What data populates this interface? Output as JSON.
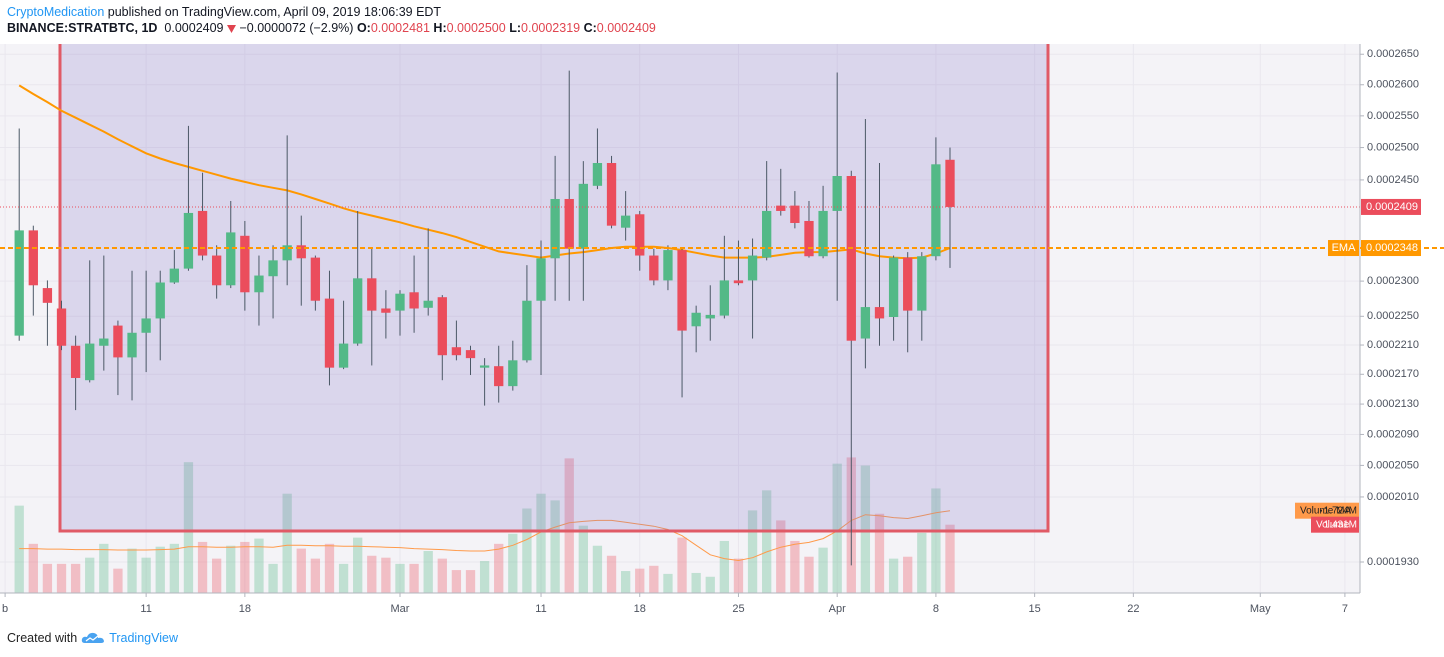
{
  "header": {
    "author": "CryptoMedication",
    "published": "published on TradingView.com, April 09, 2019 18:06:39 EDT",
    "symbol": "BINANCE:STRATBTC, 1D",
    "last": "0.0002409",
    "change": "−0.0000072 (−2.9%)",
    "ohlc": [
      {
        "key": "O:",
        "value": "0.0002481"
      },
      {
        "key": "H:",
        "value": "0.0002500"
      },
      {
        "key": "L:",
        "value": "0.0002319"
      },
      {
        "key": "C:",
        "value": "0.0002409"
      }
    ]
  },
  "footer": {
    "created": "Created with",
    "brand": "TradingView"
  },
  "chart_data": {
    "type": "candlestick",
    "log": true,
    "grid": true,
    "up_color": "#53b987",
    "down_color": "#eb4d5c",
    "x": [
      "2019-02-02",
      "2019-02-03",
      "2019-02-04",
      "2019-02-05",
      "2019-02-06",
      "2019-02-07",
      "2019-02-08",
      "2019-02-09",
      "2019-02-10",
      "2019-02-11",
      "2019-02-12",
      "2019-02-13",
      "2019-02-14",
      "2019-02-15",
      "2019-02-16",
      "2019-02-17",
      "2019-02-18",
      "2019-02-19",
      "2019-02-20",
      "2019-02-21",
      "2019-02-22",
      "2019-02-23",
      "2019-02-24",
      "2019-02-25",
      "2019-02-26",
      "2019-02-27",
      "2019-02-28",
      "2019-03-01",
      "2019-03-02",
      "2019-03-03",
      "2019-03-04",
      "2019-03-05",
      "2019-03-06",
      "2019-03-07",
      "2019-03-08",
      "2019-03-09",
      "2019-03-10",
      "2019-03-11",
      "2019-03-12",
      "2019-03-13",
      "2019-03-14",
      "2019-03-15",
      "2019-03-16",
      "2019-03-17",
      "2019-03-18",
      "2019-03-19",
      "2019-03-20",
      "2019-03-21",
      "2019-03-22",
      "2019-03-23",
      "2019-03-24",
      "2019-03-25",
      "2019-03-26",
      "2019-03-27",
      "2019-03-28",
      "2019-03-29",
      "2019-03-30",
      "2019-03-31",
      "2019-04-01",
      "2019-04-02",
      "2019-04-03",
      "2019-04-04",
      "2019-04-05",
      "2019-04-06",
      "2019-04-07",
      "2019-04-08",
      "2019-04-09"
    ],
    "open": [
      0.0002223,
      0.0002374,
      0.000229,
      0.0002261,
      0.0002209,
      0.0002162,
      0.0002209,
      0.0002237,
      0.0002193,
      0.0002227,
      0.0002247,
      0.0002298,
      0.0002318,
      0.0002403,
      0.0002337,
      0.0002294,
      0.0002366,
      0.0002284,
      0.0002307,
      0.000233,
      0.0002352,
      0.0002334,
      0.0002275,
      0.0002179,
      0.0002212,
      0.0002304,
      0.0002261,
      0.0002258,
      0.0002284,
      0.0002262,
      0.0002277,
      0.0002207,
      0.0002203,
      0.0002179,
      0.0002181,
      0.0002154,
      0.0002189,
      0.0002272,
      0.0002333,
      0.0002421,
      0.0002347,
      0.0002441,
      0.0002476,
      0.0002378,
      0.0002398,
      0.0002337,
      0.0002301,
      0.0002345,
      0.0002236,
      0.0002247,
      0.0002251,
      0.0002301,
      0.0002301,
      0.0002334,
      0.0002411,
      0.0002411,
      0.0002388,
      0.0002336,
      0.0002403,
      0.0002456,
      0.0002219,
      0.0002263,
      0.0002249,
      0.0002334,
      0.0002258,
      0.0002336,
      0.0002481
    ],
    "high": [
      0.000253,
      0.0002381,
      0.0002301,
      0.0002272,
      0.0002223,
      0.000233,
      0.0002337,
      0.0002244,
      0.0002315,
      0.0002315,
      0.0002315,
      0.0002345,
      0.0002534,
      0.0002461,
      0.0002352,
      0.0002418,
      0.0002388,
      0.0002337,
      0.0002352,
      0.0002519,
      0.0002396,
      0.0002337,
      0.0002315,
      0.0002272,
      0.0002403,
      0.0002347,
      0.0002287,
      0.0002287,
      0.0002337,
      0.0002377,
      0.000228,
      0.0002244,
      0.0002209,
      0.0002192,
      0.0002209,
      0.0002216,
      0.0002323,
      0.0002359,
      0.0002487,
      0.0002623,
      0.0002479,
      0.000253,
      0.0002487,
      0.0002433,
      0.0002403,
      0.0002347,
      0.0002352,
      0.0002347,
      0.0002265,
      0.0002294,
      0.0002366,
      0.0002359,
      0.0002362,
      0.0002479,
      0.0002467,
      0.0002433,
      0.0002418,
      0.0002441,
      0.000262,
      0.0002464,
      0.0002545,
      0.0002476,
      0.0002337,
      0.0002342,
      0.0002342,
      0.0002516,
      0.00025
    ],
    "low": [
      0.0002216,
      0.0002251,
      0.0002209,
      0.0002203,
      0.0002122,
      0.0002159,
      0.0002175,
      0.0002142,
      0.0002135,
      0.0002173,
      0.0002189,
      0.0002296,
      0.0002315,
      0.000233,
      0.0002275,
      0.000229,
      0.0002258,
      0.0002237,
      0.0002247,
      0.0002294,
      0.0002265,
      0.0002258,
      0.0002155,
      0.0002177,
      0.0002209,
      0.0002182,
      0.0002219,
      0.0002223,
      0.0002227,
      0.0002251,
      0.0002162,
      0.0002189,
      0.0002169,
      0.0002128,
      0.0002132,
      0.0002148,
      0.0002186,
      0.0002169,
      0.0002272,
      0.0002272,
      0.0002272,
      0.0002436,
      0.0002377,
      0.0002359,
      0.0002315,
      0.0002294,
      0.0002287,
      0.0002139,
      0.00022,
      0.0002216,
      0.0002247,
      0.0002294,
      0.0002219,
      0.000233,
      0.0002396,
      0.0002377,
      0.0002334,
      0.0002333,
      0.0002272,
      0.0001926,
      0.0002178,
      0.0002209,
      0.0002216,
      0.00022,
      0.0002216,
      0.000233,
      0.0002319
    ],
    "close": [
      0.0002374,
      0.0002294,
      0.0002269,
      0.0002209,
      0.0002165,
      0.0002212,
      0.0002219,
      0.0002193,
      0.0002227,
      0.0002247,
      0.0002298,
      0.0002318,
      0.00024,
      0.0002337,
      0.0002294,
      0.0002371,
      0.0002284,
      0.0002308,
      0.000233,
      0.0002352,
      0.0002333,
      0.0002272,
      0.0002179,
      0.0002212,
      0.0002304,
      0.0002258,
      0.0002255,
      0.0002282,
      0.0002261,
      0.0002272,
      0.0002196,
      0.0002196,
      0.0002192,
      0.0002182,
      0.0002154,
      0.0002189,
      0.0002272,
      0.0002333,
      0.0002421,
      0.0002347,
      0.0002444,
      0.0002476,
      0.0002381,
      0.0002396,
      0.0002337,
      0.0002301,
      0.0002345,
      0.000223,
      0.0002255,
      0.0002252,
      0.0002301,
      0.0002297,
      0.0002337,
      0.0002403,
      0.0002403,
      0.0002385,
      0.0002336,
      0.0002403,
      0.0002456,
      0.0002216,
      0.0002263,
      0.0002247,
      0.0002334,
      0.0002258,
      0.0002336,
      0.0002474,
      0.0002409
    ],
    "volume": {
      "name": "Volume",
      "values": [
        1.83,
        1.03,
        0.61,
        0.61,
        0.61,
        0.74,
        1.03,
        0.51,
        0.93,
        0.74,
        0.97,
        1.03,
        2.74,
        1.07,
        0.72,
        0.99,
        1.07,
        1.14,
        0.61,
        2.08,
        0.93,
        0.72,
        1.03,
        0.61,
        1.16,
        0.78,
        0.74,
        0.61,
        0.61,
        0.88,
        0.72,
        0.48,
        0.48,
        0.67,
        1.03,
        1.24,
        1.77,
        2.08,
        1.94,
        2.82,
        1.41,
        0.99,
        0.78,
        0.46,
        0.51,
        0.57,
        0.4,
        1.16,
        0.42,
        0.34,
        1.09,
        0.72,
        1.73,
        2.15,
        1.52,
        1.09,
        0.76,
        0.95,
        2.71,
        2.84,
        2.67,
        1.66,
        0.72,
        0.76,
        1.26,
        2.19,
        1.431
      ],
      "value_labels": [
        null,
        null,
        null,
        null,
        null,
        null,
        null,
        null,
        null,
        null,
        null,
        null,
        null,
        null,
        null,
        null,
        null,
        null,
        null,
        null,
        null,
        null,
        null,
        null,
        null,
        null,
        null,
        null,
        null,
        null,
        null,
        null,
        null,
        null,
        null,
        null,
        null,
        null,
        null,
        null,
        null,
        null,
        null,
        null,
        null,
        null,
        null,
        null,
        null,
        null,
        null,
        null,
        null,
        null,
        null,
        null,
        null,
        null,
        null,
        null,
        null,
        null,
        null,
        null,
        null,
        null,
        "1.431M"
      ],
      "label_color": "#eb4d5c"
    },
    "volume_ma": {
      "name": "Volume MA",
      "color": "#ff9a4a",
      "values": [
        0.93,
        0.93,
        0.92,
        0.92,
        0.91,
        0.91,
        0.91,
        0.9,
        0.9,
        0.9,
        0.91,
        0.92,
        0.97,
        0.97,
        0.96,
        0.96,
        0.97,
        0.97,
        0.96,
        1.0,
        1.0,
        0.99,
        0.99,
        0.98,
        0.98,
        0.97,
        0.96,
        0.95,
        0.93,
        0.92,
        0.91,
        0.89,
        0.88,
        0.88,
        0.92,
        1.0,
        1.12,
        1.28,
        1.38,
        1.47,
        1.5,
        1.52,
        1.52,
        1.48,
        1.44,
        1.4,
        1.33,
        1.2,
        1.0,
        0.8,
        0.72,
        0.68,
        0.74,
        0.86,
        0.96,
        1.02,
        1.06,
        1.14,
        1.3,
        1.52,
        1.64,
        1.62,
        1.58,
        1.56,
        1.62,
        1.68,
        1.724
      ],
      "value_labels": [
        null,
        null,
        null,
        null,
        null,
        null,
        null,
        null,
        null,
        null,
        null,
        null,
        null,
        null,
        null,
        null,
        null,
        null,
        null,
        null,
        null,
        null,
        null,
        null,
        null,
        null,
        null,
        null,
        null,
        null,
        null,
        null,
        null,
        null,
        null,
        null,
        null,
        null,
        null,
        null,
        null,
        null,
        null,
        null,
        null,
        null,
        null,
        null,
        null,
        null,
        null,
        null,
        null,
        null,
        null,
        null,
        null,
        null,
        null,
        null,
        null,
        null,
        null,
        null,
        null,
        null,
        "1.724M"
      ]
    },
    "ema": {
      "name": "EMA",
      "color": "#ff9800",
      "values": [
        0.0002599,
        0.0002585,
        0.0002572,
        0.0002558,
        0.0002547,
        0.0002536,
        0.0002525,
        0.0002513,
        0.0002502,
        0.0002491,
        0.0002483,
        0.0002476,
        0.000247,
        0.0002464,
        0.0002458,
        0.0002452,
        0.0002447,
        0.0002442,
        0.0002438,
        0.0002434,
        0.0002428,
        0.0002421,
        0.0002414,
        0.0002407,
        0.0002401,
        0.0002396,
        0.0002391,
        0.0002386,
        0.000238,
        0.0002375,
        0.000237,
        0.0002364,
        0.0002357,
        0.000235,
        0.0002343,
        0.000234,
        0.0002337,
        0.0002334,
        0.0002337,
        0.000234,
        0.0002342,
        0.0002345,
        0.0002348,
        0.000235,
        0.000235,
        0.000235,
        0.0002348,
        0.0002345,
        0.0002341,
        0.0002337,
        0.0002334,
        0.0002334,
        0.0002334,
        0.0002335,
        0.0002338,
        0.0002341,
        0.0002342,
        0.0002342,
        0.0002344,
        0.0002346,
        0.000234,
        0.0002336,
        0.0002334,
        0.0002333,
        0.0002334,
        0.000234,
        0.0002348
      ]
    },
    "ylim": [
      0.0001893,
      0.0002667
    ],
    "yticks": [
      {
        "value": 0.000193,
        "label": "0.0001930"
      },
      {
        "value": 0.000201,
        "label": "0.0002010"
      },
      {
        "value": 0.000205,
        "label": "0.0002050"
      },
      {
        "value": 0.000209,
        "label": "0.0002090"
      },
      {
        "value": 0.000213,
        "label": "0.0002130"
      },
      {
        "value": 0.000217,
        "label": "0.0002170"
      },
      {
        "value": 0.000221,
        "label": "0.0002210"
      },
      {
        "value": 0.000225,
        "label": "0.0002250"
      },
      {
        "value": 0.00023,
        "label": "0.0002300"
      },
      {
        "value": 0.000245,
        "label": "0.0002450"
      },
      {
        "value": 0.00025,
        "label": "0.0002500"
      },
      {
        "value": 0.000255,
        "label": "0.0002550"
      },
      {
        "value": 0.00026,
        "label": "0.0002600"
      },
      {
        "value": 0.000265,
        "label": "0.0002650"
      }
    ],
    "xlim": [
      "2019-01-31",
      "2019-05-08"
    ],
    "xticks": [
      {
        "value": "2019-02-01",
        "label": "b"
      },
      {
        "value": "2019-02-11",
        "label": "11"
      },
      {
        "value": "2019-02-18",
        "label": "18"
      },
      {
        "value": "2019-03-01",
        "label": "Mar"
      },
      {
        "value": "2019-03-11",
        "label": "11"
      },
      {
        "value": "2019-03-18",
        "label": "18"
      },
      {
        "value": "2019-03-25",
        "label": "25"
      },
      {
        "value": "2019-04-01",
        "label": "Apr"
      },
      {
        "value": "2019-04-08",
        "label": "8"
      },
      {
        "value": "2019-04-15",
        "label": "15"
      },
      {
        "value": "2019-04-22",
        "label": "22"
      },
      {
        "value": "2019-05-01",
        "label": "May"
      },
      {
        "value": "2019-05-07",
        "label": "7"
      }
    ],
    "volume_ylim": [
      0,
      11.5
    ]
  }
}
